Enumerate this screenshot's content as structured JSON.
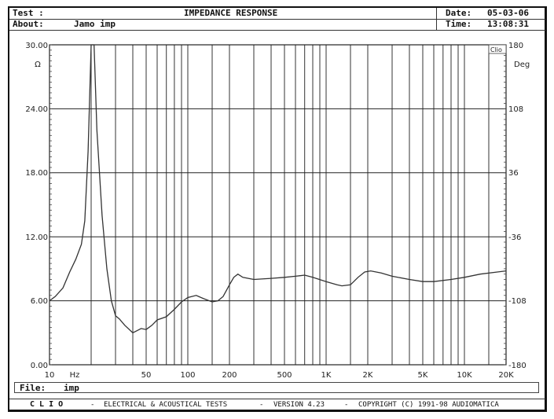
{
  "header": {
    "test_label": "Test :",
    "title": "IMPEDANCE RESPONSE",
    "about_label": "About:",
    "about_value": "Jamo imp",
    "date_label": "Date:",
    "date_value": "05-03-06",
    "time_label": "Time:",
    "time_value": "13:08:31"
  },
  "plot": {
    "left_unit": "Ω",
    "right_unit": "Deg",
    "x_unit": "Hz",
    "badge": "Clio",
    "left_ticks": [
      "30.00",
      "24.00",
      "18.00",
      "12.00",
      "6.00",
      "0.00"
    ],
    "right_ticks": [
      "180",
      "108",
      "36",
      "-36",
      "-108",
      "-180"
    ],
    "x_ticks": [
      "10",
      "50",
      "100",
      "200",
      "500",
      "1K",
      "2K",
      "5K",
      "10K",
      "20K"
    ]
  },
  "file_bar": {
    "label": "File:",
    "value": "imp"
  },
  "footer": {
    "brand": "C L I O",
    "sep1": "-",
    "desc": "ELECTRICAL & ACOUSTICAL TESTS",
    "sep2": "-",
    "version": "VERSION 4.23",
    "sep3": "-",
    "copyright": "COPYRIGHT (C) 1991-98 AUDIOMATICA"
  },
  "chart_data": {
    "type": "line",
    "title": "IMPEDANCE RESPONSE",
    "xlabel": "Hz",
    "ylabel": "Ω",
    "y2label": "Deg",
    "xscale": "log",
    "xlim": [
      10,
      20000
    ],
    "ylim": [
      0,
      30
    ],
    "y2lim": [
      -180,
      180
    ],
    "grid": true,
    "x_ticks": [
      10,
      50,
      100,
      200,
      500,
      1000,
      2000,
      5000,
      10000,
      20000
    ],
    "y_ticks": [
      0,
      6,
      12,
      18,
      24,
      30
    ],
    "y2_ticks": [
      -180,
      -108,
      -36,
      36,
      108,
      180
    ],
    "series": [
      {
        "name": "Impedance magnitude",
        "color": "#333333",
        "x": [
          10,
          11,
          12.5,
          14,
          15.5,
          17,
          18,
          19,
          20,
          21,
          22,
          24,
          26,
          28,
          30,
          32,
          35,
          40,
          43,
          46,
          50,
          55,
          60,
          70,
          80,
          90,
          100,
          115,
          130,
          150,
          165,
          180,
          200,
          215,
          230,
          250,
          300,
          400,
          500,
          600,
          700,
          800,
          1000,
          1200,
          1300,
          1500,
          1700,
          1900,
          2100,
          2500,
          3000,
          4000,
          5000,
          6000,
          8000,
          10000,
          13000,
          20000
        ],
        "y": [
          6.0,
          6.4,
          7.2,
          8.7,
          9.9,
          11.3,
          13.5,
          20.0,
          30.0,
          30.0,
          22.0,
          14.0,
          9.0,
          6.0,
          4.6,
          4.3,
          3.7,
          3.0,
          3.2,
          3.4,
          3.3,
          3.7,
          4.2,
          4.5,
          5.2,
          5.9,
          6.3,
          6.5,
          6.2,
          5.9,
          6.0,
          6.4,
          7.5,
          8.2,
          8.5,
          8.2,
          8.0,
          8.1,
          8.2,
          8.3,
          8.4,
          8.2,
          7.8,
          7.5,
          7.4,
          7.5,
          8.2,
          8.7,
          8.8,
          8.6,
          8.3,
          8.0,
          7.8,
          7.8,
          8.0,
          8.2,
          8.5,
          8.8
        ]
      }
    ]
  }
}
